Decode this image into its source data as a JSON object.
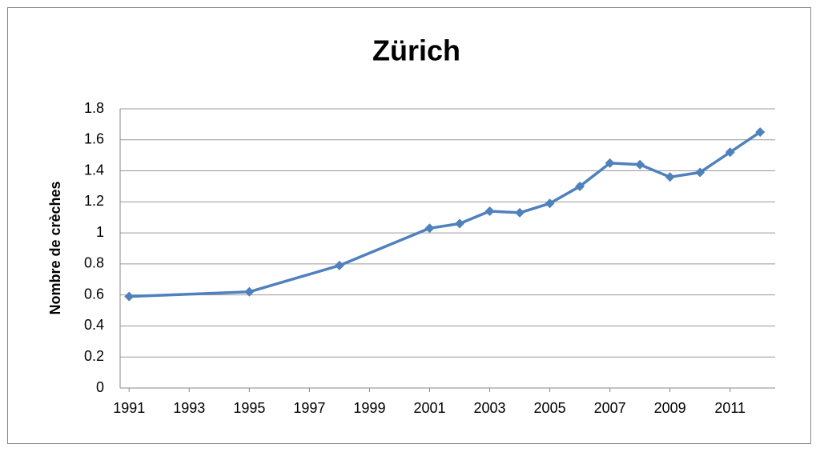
{
  "chart_data": {
    "type": "line",
    "title": "Zürich",
    "y_label": "Nombre de crèches",
    "x": [
      1991,
      1995,
      1998,
      2001,
      2002,
      2003,
      2004,
      2005,
      2006,
      2007,
      2008,
      2009,
      2010,
      2011,
      2012
    ],
    "series": [
      {
        "name": "Zürich",
        "color": "#4f81bd",
        "values": [
          0.59,
          0.62,
          0.79,
          1.03,
          1.06,
          1.14,
          1.13,
          1.19,
          1.3,
          1.45,
          1.44,
          1.36,
          1.39,
          1.52,
          1.65
        ]
      }
    ],
    "xlim": [
      1990.7,
      2012.5
    ],
    "xticks": [
      1991,
      1993,
      1995,
      1997,
      1999,
      2001,
      2003,
      2005,
      2007,
      2009,
      2011
    ],
    "ylim": [
      0,
      1.8
    ],
    "yticks": [
      0,
      0.2,
      0.4,
      0.6,
      0.8,
      1,
      1.2,
      1.4,
      1.6,
      1.8
    ],
    "grid": true
  }
}
